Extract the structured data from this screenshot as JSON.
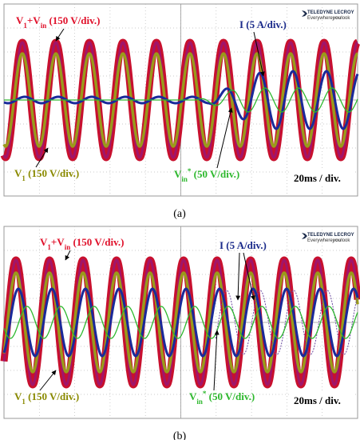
{
  "panels": [
    {
      "caption": "(a)",
      "logo": {
        "brand": "TELEDYNE LECROY",
        "slogan": [
          "Everywhere",
          "you",
          "look"
        ]
      },
      "labels": {
        "v1_vin": [
          "V",
          "1",
          "+V",
          "in",
          " (150 V/div.)"
        ],
        "current": "I (5 A/div.)",
        "v1": [
          "V",
          "1",
          " (150 V/div.)"
        ],
        "vin_ref": [
          "V",
          "in",
          "*",
          " (50 V/div.)"
        ],
        "timebase": "20ms / div."
      }
    },
    {
      "caption": "(b)",
      "logo": {
        "brand": "TELEDYNE LECROY",
        "slogan": [
          "Everywhere",
          "you",
          "look"
        ]
      },
      "labels": {
        "v1_vin": [
          "V",
          "1",
          "+V",
          "in",
          " (150 V/div.)"
        ],
        "current": "I (5 A/div.)",
        "v1": [
          "V",
          "1",
          " (150 V/div.)"
        ],
        "vin_ref": [
          "V",
          "in",
          "*",
          " (50 V/div.)"
        ],
        "timebase": "20ms / div."
      }
    }
  ]
}
